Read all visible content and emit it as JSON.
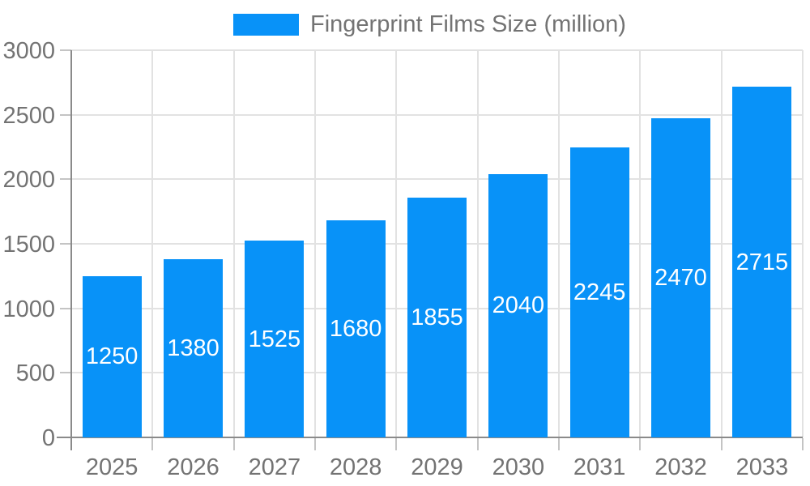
{
  "chart_data": {
    "type": "bar",
    "title": "Fingerprint Films Size (million)",
    "categories": [
      "2025",
      "2026",
      "2027",
      "2028",
      "2029",
      "2030",
      "2031",
      "2032",
      "2033"
    ],
    "values": [
      1250,
      1380,
      1525,
      1680,
      1855,
      2040,
      2245,
      2470,
      2715
    ],
    "series_name": "Fingerprint Films Size (million)",
    "xlabel": "",
    "ylabel": "",
    "ylim": [
      0,
      3000
    ],
    "ytick_step": 500,
    "ytick_labels": [
      "0",
      "500",
      "1000",
      "1500",
      "2000",
      "2500",
      "3000"
    ],
    "legend": {
      "position": "top",
      "entries": [
        "Fingerprint Films Size (million)"
      ]
    },
    "grid": {
      "horizontal": true,
      "vertical": true
    },
    "value_labels_position": "inside-center",
    "colors": {
      "bar": "#0892f8",
      "bar_label": "#ffffff",
      "axis_text": "#737373",
      "axis_line": "#8a8a8a",
      "gridline": "#e2e2e2",
      "tick": "#c4c4c4",
      "background": "#ffffff"
    }
  }
}
